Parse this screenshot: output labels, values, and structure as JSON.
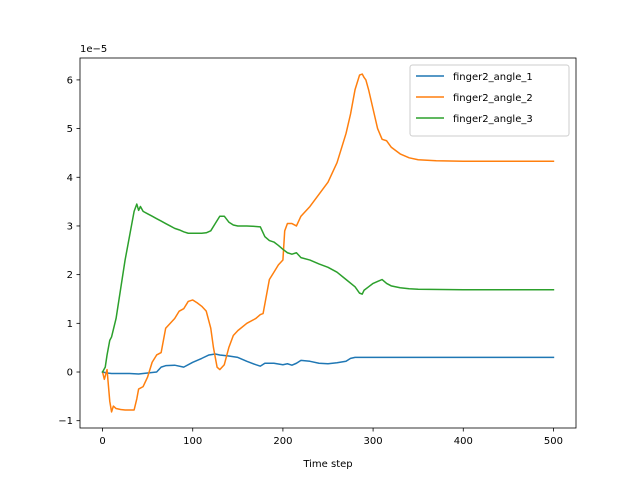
{
  "chart_data": {
    "type": "line",
    "title": "",
    "xlabel": "Time step",
    "ylabel": "",
    "y_offset_label": "1e−5",
    "xlim": [
      -25,
      525
    ],
    "ylim": [
      -1.15,
      6.45
    ],
    "xticks": [
      0,
      100,
      200,
      300,
      400,
      500
    ],
    "yticks": [
      -1,
      0,
      1,
      2,
      3,
      4,
      5,
      6
    ],
    "grid": false,
    "legend_position": "top-right",
    "series": [
      {
        "name": "finger2_angle_1",
        "color": "#1f77b4",
        "x": [
          0,
          5,
          10,
          20,
          30,
          40,
          50,
          60,
          65,
          70,
          80,
          90,
          100,
          110,
          118,
          125,
          130,
          140,
          150,
          160,
          170,
          175,
          180,
          190,
          200,
          205,
          210,
          215,
          220,
          230,
          240,
          250,
          260,
          270,
          275,
          280,
          300,
          350,
          400,
          450,
          500
        ],
        "y": [
          0.0,
          -0.02,
          -0.03,
          -0.03,
          -0.03,
          -0.04,
          -0.02,
          0.0,
          0.1,
          0.13,
          0.14,
          0.1,
          0.2,
          0.28,
          0.35,
          0.37,
          0.35,
          0.33,
          0.3,
          0.22,
          0.15,
          0.12,
          0.18,
          0.18,
          0.15,
          0.17,
          0.14,
          0.18,
          0.24,
          0.22,
          0.18,
          0.17,
          0.19,
          0.22,
          0.28,
          0.3,
          0.3,
          0.3,
          0.3,
          0.3,
          0.3
        ]
      },
      {
        "name": "finger2_angle_2",
        "color": "#ff7f0e",
        "x": [
          0,
          2,
          5,
          8,
          10,
          12,
          15,
          20,
          25,
          30,
          35,
          38,
          40,
          45,
          50,
          55,
          60,
          65,
          70,
          75,
          80,
          85,
          90,
          95,
          100,
          105,
          110,
          115,
          120,
          123,
          127,
          130,
          135,
          140,
          145,
          150,
          160,
          170,
          175,
          178,
          185,
          190,
          195,
          200,
          202,
          205,
          210,
          215,
          220,
          230,
          240,
          250,
          260,
          270,
          275,
          280,
          285,
          288,
          290,
          292,
          295,
          300,
          305,
          310,
          315,
          320,
          330,
          340,
          350,
          370,
          400,
          450,
          500
        ],
        "y": [
          0.0,
          -0.15,
          0.05,
          -0.6,
          -0.82,
          -0.7,
          -0.75,
          -0.77,
          -0.78,
          -0.78,
          -0.78,
          -0.55,
          -0.35,
          -0.3,
          -0.1,
          0.2,
          0.35,
          0.4,
          0.9,
          1.0,
          1.1,
          1.25,
          1.3,
          1.45,
          1.48,
          1.42,
          1.35,
          1.25,
          0.9,
          0.5,
          0.1,
          0.05,
          0.15,
          0.5,
          0.75,
          0.85,
          1.0,
          1.1,
          1.18,
          1.2,
          1.9,
          2.05,
          2.2,
          2.3,
          2.9,
          3.05,
          3.05,
          3.0,
          3.2,
          3.4,
          3.65,
          3.9,
          4.3,
          4.9,
          5.3,
          5.8,
          6.1,
          6.12,
          6.05,
          6.0,
          5.8,
          5.4,
          5.0,
          4.78,
          4.75,
          4.62,
          4.48,
          4.4,
          4.36,
          4.34,
          4.33,
          4.33,
          4.33
        ]
      },
      {
        "name": "finger2_angle_3",
        "color": "#2ca02c",
        "x": [
          0,
          3,
          5,
          8,
          10,
          15,
          20,
          25,
          30,
          35,
          38,
          40,
          42,
          45,
          50,
          55,
          60,
          65,
          70,
          75,
          80,
          85,
          90,
          95,
          100,
          105,
          110,
          115,
          120,
          125,
          130,
          135,
          140,
          145,
          150,
          160,
          170,
          175,
          180,
          185,
          190,
          195,
          200,
          205,
          210,
          215,
          220,
          230,
          240,
          250,
          260,
          270,
          280,
          285,
          288,
          290,
          295,
          300,
          305,
          310,
          315,
          320,
          330,
          340,
          350,
          400,
          450,
          500
        ],
        "y": [
          0.0,
          0.1,
          0.35,
          0.65,
          0.72,
          1.1,
          1.7,
          2.3,
          2.8,
          3.3,
          3.45,
          3.32,
          3.4,
          3.3,
          3.25,
          3.2,
          3.15,
          3.1,
          3.05,
          3.0,
          2.95,
          2.92,
          2.88,
          2.85,
          2.85,
          2.85,
          2.85,
          2.86,
          2.9,
          3.05,
          3.2,
          3.2,
          3.08,
          3.02,
          3.0,
          3.0,
          2.99,
          2.98,
          2.78,
          2.7,
          2.67,
          2.6,
          2.52,
          2.45,
          2.42,
          2.45,
          2.35,
          2.3,
          2.22,
          2.15,
          2.05,
          1.9,
          1.75,
          1.62,
          1.6,
          1.68,
          1.75,
          1.82,
          1.86,
          1.9,
          1.82,
          1.77,
          1.73,
          1.71,
          1.7,
          1.69,
          1.69,
          1.69
        ]
      }
    ]
  }
}
